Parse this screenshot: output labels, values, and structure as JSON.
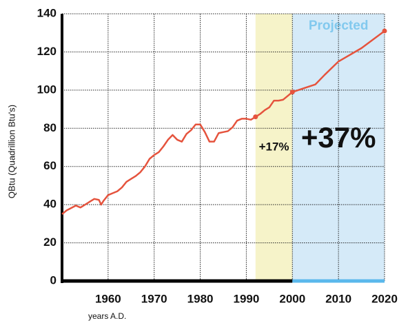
{
  "chart_data": {
    "type": "line",
    "y_label": "QBtu (Quadrillion Btu's)",
    "x_label": "years A.D.",
    "x": [
      1950,
      1951,
      1953,
      1954,
      1955,
      1956,
      1957,
      1958,
      1958.5,
      1959,
      1960,
      1961,
      1962,
      1963,
      1964,
      1965,
      1966,
      1967,
      1968,
      1969,
      1970,
      1971,
      1972,
      1973,
      1974,
      1975,
      1976,
      1977,
      1978,
      1979,
      1980,
      1981,
      1982,
      1983,
      1984,
      1985,
      1986,
      1987,
      1988,
      1989,
      1990,
      1991,
      1992,
      1993,
      1994,
      1995,
      1996,
      1997,
      1998,
      1999,
      2000,
      2005,
      2007,
      2010,
      2015,
      2020
    ],
    "series": [
      {
        "color": "#e5533d",
        "values": [
          35,
          37,
          39.5,
          38.5,
          40,
          41.5,
          43,
          42.5,
          40,
          42,
          45,
          46,
          47,
          49,
          52,
          53.5,
          55,
          57,
          60,
          64,
          66,
          67.5,
          70.5,
          74,
          76.5,
          74,
          73,
          77,
          79,
          82,
          82,
          78,
          73,
          73,
          77.5,
          78,
          78.5,
          80.5,
          84,
          85,
          85,
          84.5,
          86,
          87.5,
          89.5,
          91,
          94.5,
          94.5,
          95,
          97,
          99,
          103,
          108,
          115,
          122,
          131
        ]
      }
    ],
    "regions": [
      {
        "from": 1992,
        "to": 2000,
        "color": "#f6f3c9"
      },
      {
        "from": 2000,
        "to": 2020,
        "color": "#d5eaf8",
        "label": "Projected",
        "label_color": "#82c9ee",
        "axis_color": "#5ab8ec"
      }
    ],
    "annotations": [
      {
        "text": "+17%",
        "x": 1996,
        "y": 70
      },
      {
        "text": "+37%",
        "x": 2010,
        "y": 74
      }
    ],
    "xlim": [
      1950,
      2020
    ],
    "xticks": [
      1960,
      1970,
      1980,
      1990,
      2000,
      2010,
      2020
    ],
    "ylim": [
      0,
      140
    ],
    "yticks": [
      0,
      20,
      40,
      60,
      80,
      100,
      120,
      140
    ],
    "grid": true
  }
}
